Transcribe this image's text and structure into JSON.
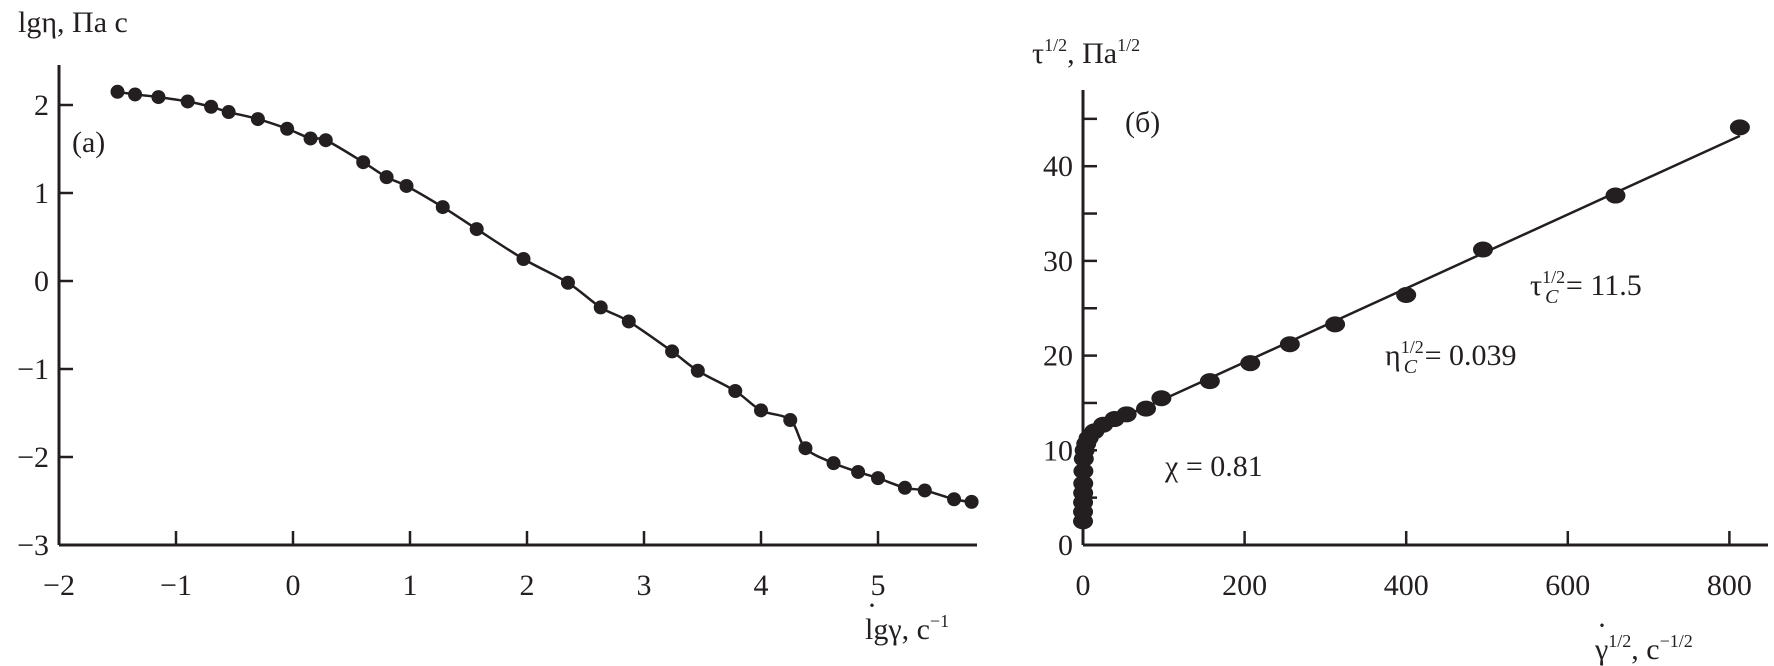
{
  "chart_data": [
    {
      "type": "scatter",
      "panel_label": "(а)",
      "ylabel": "lgη, Па с",
      "xlabel_base": "lgγ",
      "xlabel_unit": ", с",
      "xlabel_unit_sup": "−1",
      "xlim": [
        -2,
        5.85
      ],
      "ylim": [
        -3,
        2.45
      ],
      "xticks": [
        -2,
        -1,
        0,
        1,
        2,
        3,
        4,
        5
      ],
      "xtick_labels": [
        "−2",
        "−1",
        "0",
        "1",
        "2",
        "3",
        "4",
        "5"
      ],
      "yticks": [
        -3,
        -2,
        -1,
        0,
        1,
        2
      ],
      "ytick_labels": [
        "−3",
        "−2",
        "−1",
        "0",
        "1",
        "2"
      ],
      "grid": false,
      "series": [
        {
          "name": "data",
          "marker": "filled-circle",
          "line": "smooth fit",
          "x": [
            -1.5,
            -1.35,
            -1.15,
            -0.9,
            -0.7,
            -0.55,
            -0.3,
            -0.05,
            0.15,
            0.28,
            0.6,
            0.8,
            0.97,
            1.28,
            1.57,
            1.97,
            2.35,
            2.63,
            2.87,
            3.24,
            3.46,
            3.78,
            4.0,
            4.25,
            4.38,
            4.62,
            4.83,
            5.0,
            5.23,
            5.4,
            5.65,
            5.8
          ],
          "y": [
            2.15,
            2.12,
            2.09,
            2.04,
            1.98,
            1.92,
            1.84,
            1.73,
            1.62,
            1.6,
            1.35,
            1.18,
            1.08,
            0.84,
            0.59,
            0.25,
            -0.02,
            -0.3,
            -0.46,
            -0.8,
            -1.02,
            -1.25,
            -1.47,
            -1.58,
            -1.9,
            -2.07,
            -2.17,
            -2.24,
            -2.35,
            -2.38,
            -2.48,
            -2.51
          ]
        }
      ]
    },
    {
      "type": "scatter",
      "panel_label": "(б)",
      "ylabel_base": "τ",
      "ylabel_sup": "1/2",
      "ylabel_unit": ", Па",
      "ylabel_unit_sup": "1/2",
      "xlabel_base": "γ",
      "xlabel_sup": "1/2",
      "xlabel_unit": ", с",
      "xlabel_unit_sup": "−1/2",
      "xlim": [
        0,
        850
      ],
      "ylim": [
        0,
        48
      ],
      "xticks": [
        0,
        200,
        400,
        600,
        800
      ],
      "xtick_labels": [
        "0",
        "200",
        "400",
        "600",
        "800"
      ],
      "yticks": [
        0,
        10,
        20,
        30,
        40
      ],
      "ytick_labels": [
        "0",
        "10",
        "20",
        "30",
        "40"
      ],
      "yminor": [
        5,
        15,
        25,
        35,
        45
      ],
      "grid": false,
      "series": [
        {
          "name": "data",
          "marker": "filled-circle",
          "x": [
            0.02,
            0.05,
            0.1,
            0.2,
            0.3,
            0.5,
            1,
            2,
            4,
            7,
            14,
            25,
            39,
            54,
            78,
            97,
            157,
            207,
            256,
            312,
            400,
            495,
            659,
            813
          ],
          "y": [
            2.5,
            3.5,
            4.5,
            5.5,
            6.5,
            7.8,
            9.1,
            10.0,
            10.7,
            11.3,
            12.0,
            12.7,
            13.3,
            13.8,
            14.4,
            15.5,
            17.3,
            19.2,
            21.2,
            23.3,
            26.4,
            31.2,
            36.9,
            44.1
          ]
        }
      ],
      "fit": {
        "intercept": 11.5,
        "slope": 0.039
      },
      "annotations": {
        "tau_base": "τ",
        "tau_sup": "1/2",
        "tau_sub": "C",
        "tau_value": " = 11.5",
        "eta_base": "η",
        "eta_sup": "1/2",
        "eta_sub": "C",
        "eta_value": " = 0.039",
        "chi": "χ = 0.81"
      }
    }
  ]
}
